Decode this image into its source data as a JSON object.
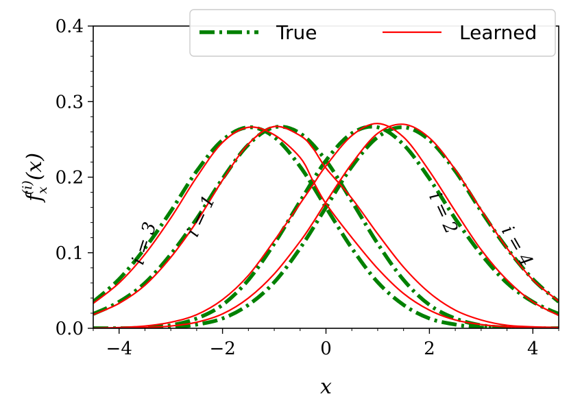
{
  "chart_data": {
    "type": "line",
    "title": "",
    "xlabel": "x",
    "ylabel": "f_x^(i)(x)",
    "ylabel_parts": {
      "base": "f",
      "sub": "x",
      "sup": "(i)",
      "arg": "(x)"
    },
    "xlim": [
      -4.5,
      4.5
    ],
    "ylim": [
      0.0,
      0.4
    ],
    "xticks": [
      -4,
      -2,
      0,
      2,
      4
    ],
    "xtick_labels": [
      "−4",
      "−2",
      "0",
      "2",
      "4"
    ],
    "yticks": [
      0.0,
      0.1,
      0.2,
      0.3,
      0.4
    ],
    "ytick_labels": [
      "0.0",
      "0.1",
      "0.2",
      "0.3",
      "0.4"
    ],
    "grid": false,
    "legend": {
      "placement": "top-right",
      "entries": [
        {
          "label": "True",
          "color": "#008000",
          "style": "dash-dot"
        },
        {
          "label": "Learned",
          "color": "#ff0000",
          "style": "solid"
        }
      ]
    },
    "series": [
      {
        "group": "True",
        "component": "i=1",
        "x": [
          -4.5,
          -4,
          -3.5,
          -3,
          -2.5,
          -2,
          -1.5,
          -1,
          -0.5,
          0,
          0.5,
          1,
          1.5,
          2,
          2.5,
          3,
          3.5,
          4,
          4.5
        ],
        "y": [
          0.019,
          0.035,
          0.06,
          0.098,
          0.145,
          0.198,
          0.243,
          0.266,
          0.258,
          0.222,
          0.168,
          0.112,
          0.064,
          0.031,
          0.013,
          0.004,
          0.001,
          0.0,
          0.0
        ]
      },
      {
        "group": "True",
        "component": "i=3",
        "x": [
          -4.5,
          -4,
          -3.5,
          -3,
          -2.5,
          -2,
          -1.5,
          -1,
          -0.5,
          0,
          0.5,
          1,
          1.5,
          2,
          2.5,
          3,
          3.5,
          4,
          4.5
        ],
        "y": [
          0.035,
          0.065,
          0.106,
          0.155,
          0.208,
          0.249,
          0.266,
          0.253,
          0.214,
          0.16,
          0.106,
          0.061,
          0.031,
          0.013,
          0.005,
          0.001,
          0.0,
          0.0,
          0.0
        ]
      },
      {
        "group": "True",
        "component": "i=2",
        "x": [
          -4.5,
          -4,
          -3.5,
          -3,
          -2.5,
          -2,
          -1.5,
          -1,
          -0.5,
          0,
          0.5,
          1,
          1.5,
          2,
          2.5,
          3,
          3.5,
          4,
          4.5
        ],
        "y": [
          0.0,
          0.0,
          0.001,
          0.004,
          0.013,
          0.031,
          0.064,
          0.112,
          0.168,
          0.222,
          0.258,
          0.266,
          0.243,
          0.198,
          0.145,
          0.098,
          0.06,
          0.035,
          0.019
        ]
      },
      {
        "group": "True",
        "component": "i=4",
        "x": [
          -4.5,
          -4,
          -3.5,
          -3,
          -2.5,
          -2,
          -1.5,
          -1,
          -0.5,
          0,
          0.5,
          1,
          1.5,
          2,
          2.5,
          3,
          3.5,
          4,
          4.5
        ],
        "y": [
          0.0,
          0.0,
          0.0,
          0.001,
          0.005,
          0.013,
          0.031,
          0.061,
          0.106,
          0.16,
          0.214,
          0.253,
          0.266,
          0.249,
          0.208,
          0.155,
          0.106,
          0.065,
          0.035
        ]
      },
      {
        "group": "Learned",
        "component": "i=1",
        "x": [
          -4.5,
          -4,
          -3.5,
          -3,
          -2.5,
          -2,
          -1.5,
          -1,
          -0.5,
          -0.25,
          0,
          0.5,
          1,
          1.5,
          2,
          2.5,
          3,
          3.5,
          4,
          4.5
        ],
        "y": [
          0.018,
          0.033,
          0.057,
          0.094,
          0.141,
          0.196,
          0.244,
          0.267,
          0.255,
          0.238,
          0.212,
          0.172,
          0.125,
          0.081,
          0.047,
          0.024,
          0.011,
          0.004,
          0.002,
          0.001
        ]
      },
      {
        "group": "Learned",
        "component": "i=3",
        "x": [
          -4.5,
          -4,
          -3.5,
          -3,
          -2.5,
          -2,
          -1.5,
          -1,
          -0.5,
          -0.25,
          0,
          0.5,
          1,
          1.5,
          2,
          2.5,
          3,
          3.5,
          4,
          4.5
        ],
        "y": [
          0.033,
          0.06,
          0.098,
          0.146,
          0.2,
          0.246,
          0.266,
          0.256,
          0.226,
          0.195,
          0.165,
          0.12,
          0.079,
          0.046,
          0.024,
          0.011,
          0.005,
          0.002,
          0.001,
          0.0
        ]
      },
      {
        "group": "Learned",
        "component": "i=2",
        "x": [
          -4.5,
          -4,
          -3.5,
          -3,
          -2.5,
          -2,
          -1.5,
          -1,
          -0.5,
          -0.25,
          0,
          0.5,
          1,
          1.5,
          2,
          2.5,
          3,
          3.5,
          4,
          4.5
        ],
        "y": [
          0.0,
          0.001,
          0.003,
          0.008,
          0.018,
          0.038,
          0.07,
          0.116,
          0.165,
          0.19,
          0.215,
          0.255,
          0.271,
          0.253,
          0.208,
          0.155,
          0.104,
          0.064,
          0.035,
          0.017
        ]
      },
      {
        "group": "Learned",
        "component": "i=4",
        "x": [
          -4.5,
          -4,
          -3.5,
          -3,
          -2.5,
          -2,
          -1.5,
          -1,
          -0.5,
          -0.25,
          0,
          0.5,
          1,
          1.5,
          2,
          2.5,
          3,
          3.5,
          4,
          4.5
        ],
        "y": [
          0.0,
          0.0,
          0.001,
          0.003,
          0.008,
          0.019,
          0.04,
          0.072,
          0.115,
          0.14,
          0.167,
          0.218,
          0.258,
          0.27,
          0.252,
          0.21,
          0.157,
          0.106,
          0.064,
          0.036
        ]
      }
    ],
    "annotations": [
      {
        "text": "i = 3",
        "x": -3.5,
        "y": 0.112,
        "angle": -72
      },
      {
        "text": "i = 1",
        "x": -2.4,
        "y": 0.148,
        "angle": -65
      },
      {
        "text": "i = 2",
        "x": 2.25,
        "y": 0.152,
        "angle": 65
      },
      {
        "text": "i = 4",
        "x": 3.68,
        "y": 0.108,
        "angle": 60
      }
    ]
  }
}
